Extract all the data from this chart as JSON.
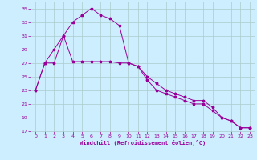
{
  "xlabel": "Windchill (Refroidissement éolien,°C)",
  "ylabel": "",
  "xlim": [
    -0.5,
    23.5
  ],
  "ylim": [
    17,
    36
  ],
  "yticks": [
    17,
    19,
    21,
    23,
    25,
    27,
    29,
    31,
    33,
    35
  ],
  "xticks": [
    0,
    1,
    2,
    3,
    4,
    5,
    6,
    7,
    8,
    9,
    10,
    11,
    12,
    13,
    14,
    15,
    16,
    17,
    18,
    19,
    20,
    21,
    22,
    23
  ],
  "background_color": "#cceeff",
  "grid_color": "#aacccc",
  "line_color": "#990099",
  "series1_x": [
    0,
    1,
    2,
    3,
    4,
    5,
    6,
    7,
    8,
    9,
    10,
    11,
    12,
    13,
    14,
    15,
    16,
    17,
    18,
    19,
    20,
    21,
    22,
    23
  ],
  "series1_y": [
    23.0,
    27.0,
    29.0,
    31.0,
    33.0,
    34.0,
    35.0,
    34.0,
    33.5,
    32.5,
    27.0,
    26.5,
    25.0,
    24.0,
    23.0,
    22.5,
    22.0,
    21.5,
    21.5,
    20.5,
    19.0,
    18.5,
    17.5,
    17.5
  ],
  "series2_x": [
    0,
    1,
    2,
    3,
    4,
    5,
    6,
    7,
    8,
    9,
    10,
    11,
    12,
    13,
    14,
    15,
    16,
    17,
    18,
    19,
    20,
    21,
    22,
    23
  ],
  "series2_y": [
    23.0,
    27.0,
    27.0,
    31.0,
    27.2,
    27.2,
    27.2,
    27.2,
    27.2,
    27.0,
    27.0,
    26.5,
    24.5,
    23.0,
    22.5,
    22.0,
    21.5,
    21.0,
    21.0,
    20.0,
    19.0,
    18.5,
    17.5,
    17.5
  ]
}
